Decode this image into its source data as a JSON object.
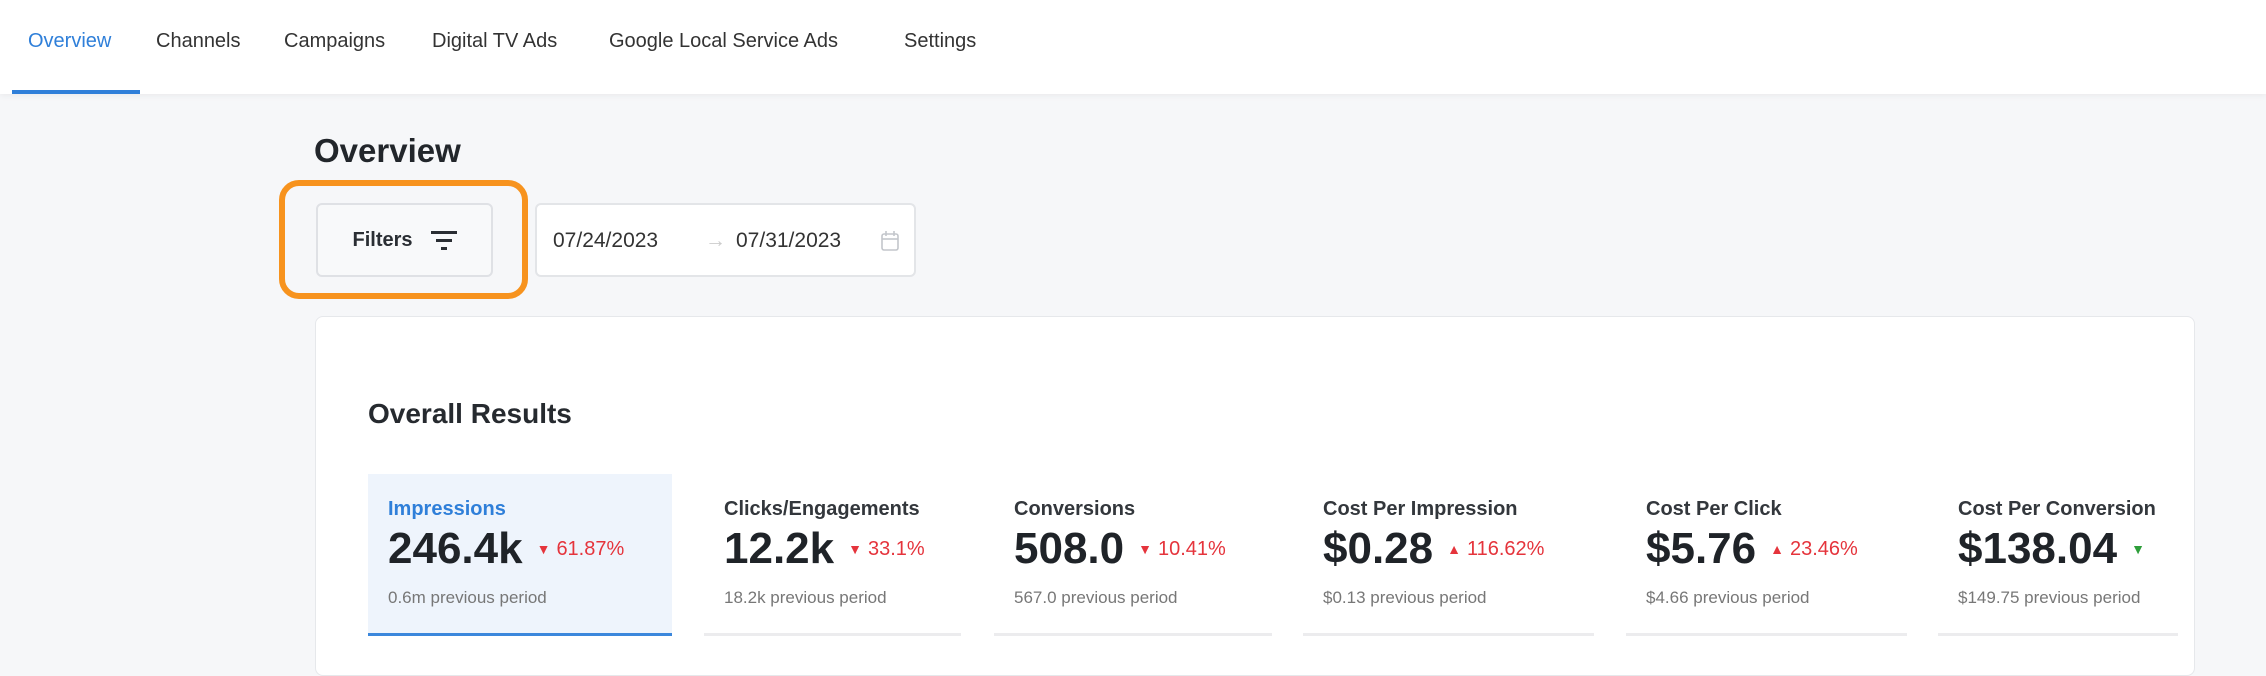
{
  "nav": {
    "tabs": [
      {
        "label": "Overview",
        "active": true
      },
      {
        "label": "Channels"
      },
      {
        "label": "Campaigns"
      },
      {
        "label": "Digital TV Ads"
      },
      {
        "label": "Google Local Service Ads"
      },
      {
        "label": "Settings"
      }
    ]
  },
  "page": {
    "title": "Overview"
  },
  "filters": {
    "label": "Filters",
    "icon": "filter-icon",
    "highlight_color": "#F7931E"
  },
  "date_range": {
    "start": "07/24/2023",
    "end": "07/31/2023",
    "icon": "calendar-icon"
  },
  "results": {
    "title": "Overall Results",
    "metrics": [
      {
        "label": "Impressions",
        "value": "246.4k",
        "change": "61.87%",
        "direction": "down",
        "previous": "0.6m previous period",
        "active": true
      },
      {
        "label": "Clicks/Engagements",
        "value": "12.2k",
        "change": "33.1%",
        "direction": "down",
        "previous": "18.2k previous period"
      },
      {
        "label": "Conversions",
        "value": "508.0",
        "change": "10.41%",
        "direction": "down",
        "previous": "567.0 previous period"
      },
      {
        "label": "Cost Per Impression",
        "value": "$0.28",
        "change": "116.62%",
        "direction": "up",
        "previous": "$0.13 previous period"
      },
      {
        "label": "Cost Per Click",
        "value": "$5.76",
        "change": "23.46%",
        "direction": "up",
        "previous": "$4.66 previous period"
      },
      {
        "label": "Cost Per Conversion",
        "value": "$138.04",
        "direction": "down",
        "previous": "$149.75 previous period"
      }
    ]
  },
  "colors": {
    "accent": "#2F7FD9",
    "negative": "#E5343C",
    "positive": "#2E9E3A"
  }
}
